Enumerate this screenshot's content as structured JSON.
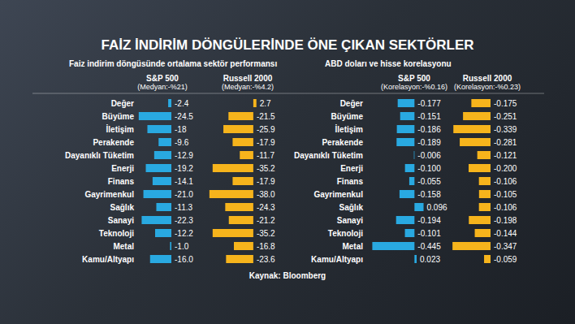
{
  "title": "FAİZ İNDİRİM DÖNGÜLERİNDE ÖNE ÇIKAN SEKTÖRLER",
  "headings": [
    "Faiz indirim döngüsünde ortalama sektör performansı",
    "ABD doları ve hisse korelasyonu"
  ],
  "source": "Kaynak: Bloomberg",
  "chart_data": [
    {
      "type": "bar",
      "orientation": "horizontal",
      "title": "S&P 500",
      "subtitle": "(Medyan:-%21)",
      "categories": [
        "Değer",
        "Büyüme",
        "İletişim",
        "Perakende",
        "Dayanıklı Tüketim",
        "Enerji",
        "Finans",
        "Gayrimenkul",
        "Sağlık",
        "Sanayi",
        "Teknoloji",
        "Metal",
        "Kamu/Altyapı"
      ],
      "values": [
        -2.4,
        -24.5,
        -18,
        -9.6,
        -12.9,
        -19.2,
        -14.1,
        -21.0,
        -11.3,
        -22.3,
        -12.2,
        -1.0,
        -16.0
      ],
      "value_labels": [
        "-2.4",
        "-24.5",
        "-18",
        "-9.6",
        "-12.9",
        "-19.2",
        "-14.1",
        "-21.0",
        "-11.3",
        "-22.3",
        "-12.2",
        "-1.0",
        "-16.0"
      ],
      "color": "#29a9e1",
      "xlim": [
        -25,
        0
      ],
      "data_labels": true,
      "tick_labels": "y"
    },
    {
      "type": "bar",
      "orientation": "horizontal",
      "title": "Russell 2000",
      "subtitle": "(Medyan:-%4.2)",
      "categories": [
        "Değer",
        "Büyüme",
        "İletişim",
        "Perakende",
        "Dayanıklı Tüketim",
        "Enerji",
        "Finans",
        "Gayrimenkul",
        "Sağlık",
        "Sanayi",
        "Teknoloji",
        "Metal",
        "Kamu/Altyapı"
      ],
      "values": [
        2.7,
        -21.5,
        -25.9,
        -17.9,
        -11.7,
        -35.2,
        -17.9,
        -38.0,
        -24.3,
        -21.2,
        -35.2,
        -16.8,
        -23.6
      ],
      "value_labels": [
        "2.7",
        "-21.5",
        "-25.9",
        "-17.9",
        "-11.7",
        "-35.2",
        "-17.9",
        "-38.0",
        "-24.3",
        "-21.2",
        "-35.2",
        "-16.8",
        "-23.6"
      ],
      "color": "#f6b41c",
      "xlim": [
        -40,
        5
      ],
      "data_labels": true,
      "tick_labels": false
    },
    {
      "type": "bar",
      "orientation": "horizontal",
      "title": "S&P 500",
      "subtitle": "(Korelasyon:-%0.16)",
      "categories": [
        "Değer",
        "Büyüme",
        "İletişim",
        "Perakende",
        "Dayanıklı Tüketim",
        "Enerji",
        "Finans",
        "Gayrimenkul",
        "Sağlık",
        "Sanayi",
        "Teknoloji",
        "Metal",
        "Kamu/Altyapı"
      ],
      "values": [
        -0.177,
        -0.151,
        -0.186,
        -0.189,
        -0.006,
        -0.1,
        -0.055,
        -0.158,
        0.096,
        -0.194,
        -0.101,
        -0.445,
        0.023
      ],
      "value_labels": [
        "-0.177",
        "-0.151",
        "-0.186",
        "-0.189",
        "-0.006",
        "-0.100",
        "-0.055",
        "-0.158",
        "0.096",
        "-0.194",
        "-0.101",
        "-0.445",
        "0.023"
      ],
      "color": "#29a9e1",
      "xlim": [
        -0.5,
        0.1
      ],
      "data_labels": true,
      "tick_labels": "y"
    },
    {
      "type": "bar",
      "orientation": "horizontal",
      "title": "Russell 2000",
      "subtitle": "(Korelasyon:-%0.23)",
      "categories": [
        "Değer",
        "Büyüme",
        "İletişim",
        "Perakende",
        "Dayanıklı Tüketim",
        "Enerji",
        "Finans",
        "Gayrimenkul",
        "Sağlık",
        "Sanayi",
        "Teknoloji",
        "Metal",
        "Kamu/Altyapı"
      ],
      "values": [
        -0.175,
        -0.251,
        -0.339,
        -0.281,
        -0.121,
        -0.2,
        -0.106,
        -0.105,
        -0.106,
        -0.198,
        -0.144,
        -0.347,
        -0.059
      ],
      "value_labels": [
        "-0.175",
        "-0.251",
        "-0.339",
        "-0.281",
        "-0.121",
        "-0.200",
        "-0.106",
        "-0.105",
        "-0.106",
        "-0.198",
        "-0.144",
        "-0.347",
        "-0.059"
      ],
      "color": "#f6b41c",
      "xlim": [
        -0.4,
        0
      ],
      "data_labels": true,
      "tick_labels": false
    }
  ]
}
